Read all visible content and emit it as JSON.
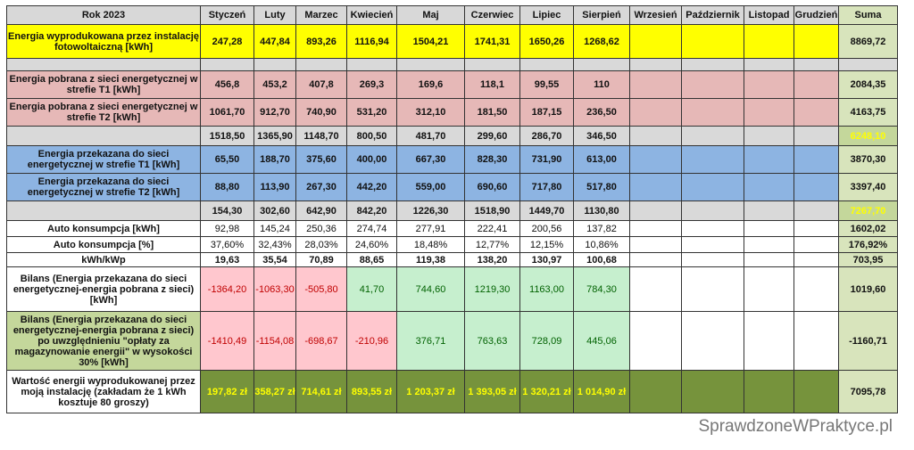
{
  "header": {
    "year_label": "Rok 2023",
    "months": [
      "Styczeń",
      "Luty",
      "Marzec",
      "Kwiecień",
      "Maj",
      "Czerwiec",
      "Lipiec",
      "Sierpień",
      "Wrzesień",
      "Październik",
      "Listopad",
      "Grudzień"
    ],
    "sum_label": "Suma"
  },
  "rows": [
    {
      "label": "Energia wyprodukowana przez instalację fotowoltaiczną [kWh]",
      "values": [
        "247,28",
        "447,84",
        "893,26",
        "1116,94",
        "1504,21",
        "1741,31",
        "1650,26",
        "1268,62",
        "",
        "",
        "",
        ""
      ],
      "sum": "8869,72"
    },
    {
      "label": "",
      "values": [
        "",
        "",
        "",
        "",
        "",
        "",
        "",
        "",
        "",
        "",
        "",
        ""
      ],
      "sum": ""
    },
    {
      "label": "Energia pobrana z sieci energetycznej w strefie T1 [kWh]",
      "values": [
        "456,8",
        "453,2",
        "407,8",
        "269,3",
        "169,6",
        "118,1",
        "99,55",
        "110",
        "",
        "",
        "",
        ""
      ],
      "sum": "2084,35"
    },
    {
      "label": "Energia pobrana z sieci energetycznej w strefie T2 [kWh]",
      "values": [
        "1061,70",
        "912,70",
        "740,90",
        "531,20",
        "312,10",
        "181,50",
        "187,15",
        "236,50",
        "",
        "",
        "",
        ""
      ],
      "sum": "4163,75"
    },
    {
      "label": "",
      "values": [
        "1518,50",
        "1365,90",
        "1148,70",
        "800,50",
        "481,70",
        "299,60",
        "286,70",
        "346,50",
        "",
        "",
        "",
        ""
      ],
      "sum": "6248,10"
    },
    {
      "label": "Energia przekazana do sieci energetycznej w strefie T1 [kWh]",
      "values": [
        "65,50",
        "188,70",
        "375,60",
        "400,00",
        "667,30",
        "828,30",
        "731,90",
        "613,00",
        "",
        "",
        "",
        ""
      ],
      "sum": "3870,30"
    },
    {
      "label": "Energia przekazana do sieci energetycznej w strefie T2 [kWh]",
      "values": [
        "88,80",
        "113,90",
        "267,30",
        "442,20",
        "559,00",
        "690,60",
        "717,80",
        "517,80",
        "",
        "",
        "",
        ""
      ],
      "sum": "3397,40"
    },
    {
      "label": "",
      "values": [
        "154,30",
        "302,60",
        "642,90",
        "842,20",
        "1226,30",
        "1518,90",
        "1449,70",
        "1130,80",
        "",
        "",
        "",
        ""
      ],
      "sum": "7267,70"
    },
    {
      "label": "Auto konsumpcja [kWh]",
      "values": [
        "92,98",
        "145,24",
        "250,36",
        "274,74",
        "277,91",
        "222,41",
        "200,56",
        "137,82",
        "",
        "",
        "",
        ""
      ],
      "sum": "1602,02"
    },
    {
      "label": "Auto konsumpcja [%]",
      "values": [
        "37,60%",
        "32,43%",
        "28,03%",
        "24,60%",
        "18,48%",
        "12,77%",
        "12,15%",
        "10,86%",
        "",
        "",
        "",
        ""
      ],
      "sum": "176,92%"
    },
    {
      "label": "kWh/kWp",
      "values": [
        "19,63",
        "35,54",
        "70,89",
        "88,65",
        "119,38",
        "138,20",
        "130,97",
        "100,68",
        "",
        "",
        "",
        ""
      ],
      "sum": "703,95"
    },
    {
      "label": "Bilans (Energia przekazana do sieci energetycznej-energia pobrana z sieci) [kWh]",
      "values": [
        "-1364,20",
        "-1063,30",
        "-505,80",
        "41,70",
        "744,60",
        "1219,30",
        "1163,00",
        "784,30",
        "",
        "",
        "",
        ""
      ],
      "sum": "1019,60"
    },
    {
      "label": "Bilans (Energia przekazana do sieci energetycznej-energia pobrana z sieci) po uwzględnieniu \"opłaty za magazynowanie energii\" w wysokości 30% [kWh]",
      "values": [
        "-1410,49",
        "-1154,08",
        "-698,67",
        "-210,96",
        "376,71",
        "763,63",
        "728,09",
        "445,06",
        "",
        "",
        "",
        ""
      ],
      "sum": "-1160,71"
    },
    {
      "label": "Wartość energii wyprodukowanej przez moją instalację (zakładam że 1 kWh kosztuje 80 groszy)",
      "values": [
        "197,82 zł",
        "358,27 zł",
        "714,61 zł",
        "893,55 zł",
        "1 203,37 zł",
        "1 393,05 zł",
        "1 320,21 zł",
        "1 014,90 zł",
        "",
        "",
        "",
        ""
      ],
      "sum": "7095,78"
    }
  ],
  "watermark": "SprawdzoneWPraktyce.pl",
  "colors": {
    "header": "#d8d8d8",
    "production": "#ffff00",
    "separator": "#d9d9d9",
    "grid_import": "#e6b8b7",
    "grid_export": "#8db4e2",
    "sum_column": "#d8e4bc",
    "balance_label": "#c4d79b",
    "negative_fill": "#ffc7ce",
    "negative_text": "#c00000",
    "positive_fill": "#c6efce",
    "positive_text": "#006100",
    "value_row": "#76933c",
    "highlight_text": "#ffff00"
  }
}
